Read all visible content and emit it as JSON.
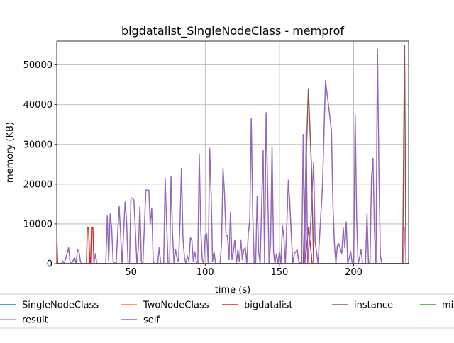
{
  "chart_data": {
    "type": "line",
    "title": "bigdatalist_SingleNodeClass - memprof",
    "xlabel": "time (s)",
    "ylabel": "memory (KB)",
    "xlim": [
      0,
      237
    ],
    "ylim": [
      0,
      56000
    ],
    "xticks": [
      50,
      100,
      150,
      200
    ],
    "yticks": [
      0,
      10000,
      20000,
      30000,
      40000,
      50000
    ],
    "grid": true,
    "legend_position": "bottom",
    "series": [
      {
        "name": "SingleNodeClass",
        "color": "#1f77b4",
        "points": [
          [
            0,
            0
          ],
          [
            237,
            0
          ]
        ]
      },
      {
        "name": "TwoNodeClass",
        "color": "#ff7f0e",
        "points": [
          [
            0,
            0
          ],
          [
            237,
            0
          ]
        ]
      },
      {
        "name": "bigdatalist",
        "color": "#d62728",
        "points": [
          [
            0,
            7000
          ],
          [
            0.6,
            0
          ],
          [
            20,
            0
          ],
          [
            20.6,
            9000
          ],
          [
            21.4,
            9000
          ],
          [
            22.3,
            0
          ],
          [
            22.8,
            0
          ],
          [
            23.4,
            9000
          ],
          [
            24.3,
            9000
          ],
          [
            25.1,
            0
          ],
          [
            167,
            0
          ],
          [
            168.5,
            5000
          ],
          [
            169.5,
            9000
          ],
          [
            171,
            4000
          ],
          [
            172,
            0
          ],
          [
            237,
            0
          ]
        ]
      },
      {
        "name": "instance",
        "color": "#8c564b",
        "points": [
          [
            0,
            0
          ],
          [
            166,
            0
          ],
          [
            167.5,
            20000
          ],
          [
            169.5,
            44000
          ],
          [
            171.5,
            25000
          ],
          [
            173,
            0
          ],
          [
            233,
            0
          ],
          [
            234.3,
            55000
          ],
          [
            235.2,
            0
          ]
        ]
      },
      {
        "name": "middledatalist",
        "color": "#2ca02c",
        "points": [
          [
            0,
            0
          ],
          [
            237,
            0
          ]
        ]
      },
      {
        "name": "result",
        "color": "#e377c2",
        "points": [
          [
            0,
            0
          ],
          [
            233.5,
            0
          ],
          [
            234.5,
            9000
          ],
          [
            235.2,
            0
          ]
        ]
      },
      {
        "name": "self",
        "color": "#9467bd",
        "points": [
          [
            0,
            0
          ],
          [
            3,
            0
          ],
          [
            4,
            700
          ],
          [
            5,
            0
          ],
          [
            7,
            2500
          ],
          [
            8,
            4000
          ],
          [
            9,
            500
          ],
          [
            10,
            0
          ],
          [
            12,
            1500
          ],
          [
            13,
            0
          ],
          [
            14,
            3500
          ],
          [
            15,
            3000
          ],
          [
            16,
            500
          ],
          [
            17,
            0
          ],
          [
            25,
            0
          ],
          [
            26,
            2500
          ],
          [
            27,
            0
          ],
          [
            33,
            0
          ],
          [
            34,
            12000
          ],
          [
            35,
            500
          ],
          [
            36,
            12500
          ],
          [
            37,
            9000
          ],
          [
            38,
            500
          ],
          [
            40,
            0
          ],
          [
            42,
            14500
          ],
          [
            43,
            7500
          ],
          [
            44,
            0
          ],
          [
            46,
            15500
          ],
          [
            47,
            11000
          ],
          [
            48,
            0
          ],
          [
            49,
            0
          ],
          [
            50,
            16500
          ],
          [
            51,
            16500
          ],
          [
            52,
            16000
          ],
          [
            53,
            8000
          ],
          [
            54,
            0
          ],
          [
            55,
            4000
          ],
          [
            56,
            14500
          ],
          [
            57,
            500
          ],
          [
            58,
            0
          ],
          [
            60,
            18500
          ],
          [
            62,
            18500
          ],
          [
            63,
            10000
          ],
          [
            64,
            14000
          ],
          [
            65,
            500
          ],
          [
            66,
            0
          ],
          [
            68,
            0
          ],
          [
            69,
            4000
          ],
          [
            70,
            0
          ],
          [
            72,
            0
          ],
          [
            73,
            21500
          ],
          [
            74,
            10000
          ],
          [
            75,
            0
          ],
          [
            76,
            0
          ],
          [
            77,
            22000
          ],
          [
            78,
            7500
          ],
          [
            79,
            0
          ],
          [
            80,
            3500
          ],
          [
            81,
            1500
          ],
          [
            82,
            500
          ],
          [
            83,
            10000
          ],
          [
            84,
            24000
          ],
          [
            85,
            6500
          ],
          [
            86,
            1500
          ],
          [
            87,
            0
          ],
          [
            88,
            2000
          ],
          [
            89,
            500
          ],
          [
            90,
            6500
          ],
          [
            91,
            6000
          ],
          [
            92,
            500
          ],
          [
            93,
            3000
          ],
          [
            94,
            500
          ],
          [
            95,
            0
          ],
          [
            96,
            27500
          ],
          [
            97,
            8500
          ],
          [
            98,
            1000
          ],
          [
            99,
            0
          ],
          [
            100,
            7000
          ],
          [
            101,
            7500
          ],
          [
            102,
            0
          ],
          [
            103,
            29000
          ],
          [
            104,
            17000
          ],
          [
            105,
            500
          ],
          [
            106,
            3000
          ],
          [
            107,
            0
          ],
          [
            110,
            0
          ],
          [
            111,
            5000
          ],
          [
            112,
            24000
          ],
          [
            113,
            17500
          ],
          [
            114,
            7000
          ],
          [
            115,
            7000
          ],
          [
            116,
            1000
          ],
          [
            117,
            13000
          ],
          [
            118,
            1000
          ],
          [
            119,
            3000
          ],
          [
            120,
            6000
          ],
          [
            121,
            0
          ],
          [
            122,
            3500
          ],
          [
            123,
            500
          ],
          [
            124,
            6000
          ],
          [
            125,
            1000
          ],
          [
            126,
            3500
          ],
          [
            127,
            4000
          ],
          [
            128,
            0
          ],
          [
            129,
            7500
          ],
          [
            130,
            11000
          ],
          [
            131,
            36500
          ],
          [
            132,
            12500
          ],
          [
            133,
            0
          ],
          [
            134,
            0
          ],
          [
            135,
            17000
          ],
          [
            136,
            3000
          ],
          [
            137,
            0
          ],
          [
            139,
            28500
          ],
          [
            140,
            0
          ],
          [
            141,
            38000
          ],
          [
            142,
            20000
          ],
          [
            143,
            0
          ],
          [
            144,
            5000
          ],
          [
            145,
            29500
          ],
          [
            146,
            3000
          ],
          [
            147,
            0
          ],
          [
            148,
            2500
          ],
          [
            149,
            0
          ],
          [
            150,
            3000
          ],
          [
            151,
            0
          ],
          [
            152,
            9500
          ],
          [
            153,
            6500
          ],
          [
            154,
            0
          ],
          [
            156,
            21000
          ],
          [
            157,
            15000
          ],
          [
            158,
            7000
          ],
          [
            159,
            0
          ],
          [
            160,
            2500
          ],
          [
            162,
            3500
          ],
          [
            163,
            500
          ],
          [
            165,
            0
          ],
          [
            166,
            32500
          ],
          [
            167,
            0
          ],
          [
            168,
            33500
          ],
          [
            169,
            0
          ],
          [
            171,
            10000
          ],
          [
            173,
            25500
          ],
          [
            174,
            5500
          ],
          [
            176,
            0
          ],
          [
            179,
            19500
          ],
          [
            181,
            46000
          ],
          [
            183,
            40000
          ],
          [
            185,
            33500
          ],
          [
            186,
            15000
          ],
          [
            187,
            5000
          ],
          [
            188,
            0
          ],
          [
            189,
            4500
          ],
          [
            190,
            5000
          ],
          [
            192,
            2500
          ],
          [
            193,
            9000
          ],
          [
            194,
            4000
          ],
          [
            195,
            10500
          ],
          [
            196,
            0
          ],
          [
            198,
            3000
          ],
          [
            199,
            0
          ],
          [
            200,
            0
          ],
          [
            201,
            37500
          ],
          [
            202,
            11000
          ],
          [
            203,
            0
          ],
          [
            204,
            1500
          ],
          [
            205,
            3500
          ],
          [
            206,
            0
          ],
          [
            208,
            0
          ],
          [
            209,
            12500
          ],
          [
            210,
            0
          ],
          [
            211,
            500
          ],
          [
            212,
            21500
          ],
          [
            213,
            26500
          ],
          [
            214,
            8000
          ],
          [
            215,
            0
          ],
          [
            216,
            54000
          ],
          [
            217,
            24000
          ],
          [
            218,
            2000
          ],
          [
            219,
            0
          ],
          [
            237,
            0
          ]
        ]
      }
    ]
  }
}
